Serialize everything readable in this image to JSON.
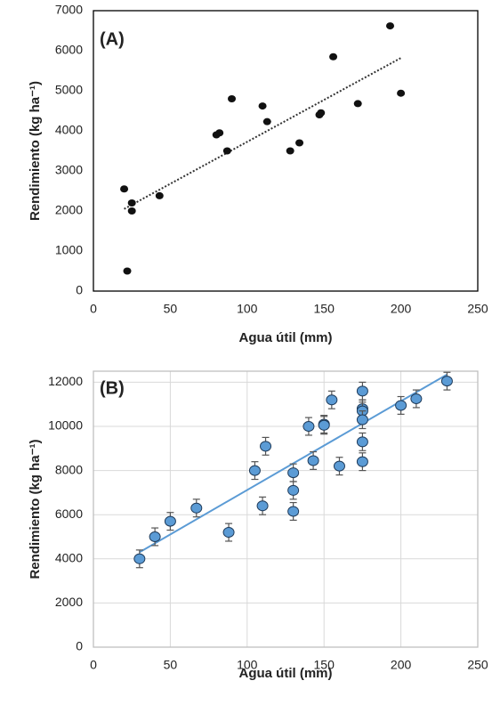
{
  "chart_data": [
    {
      "type": "scatter",
      "annotation": "(A)",
      "x_label": "Agua útil (mm)",
      "y_label": "Rendimiento (kg ha⁻¹)",
      "xlim": [
        0,
        250
      ],
      "ylim": [
        0,
        7000
      ],
      "xticks": [
        0,
        50,
        100,
        150,
        200,
        250
      ],
      "yticks": [
        0,
        1000,
        2000,
        3000,
        4000,
        5000,
        6000,
        7000
      ],
      "grid": false,
      "frame_color": "#000000",
      "color": "#111111",
      "x": [
        20,
        22,
        25,
        25,
        43,
        80,
        82,
        87,
        90,
        110,
        113,
        128,
        134,
        147,
        148,
        156,
        172,
        193,
        200
      ],
      "values": [
        2550,
        500,
        2200,
        2000,
        2380,
        3900,
        3950,
        3500,
        4800,
        4620,
        4230,
        3500,
        3700,
        4400,
        4450,
        5850,
        4680,
        6620,
        4940
      ],
      "trendline": {
        "x": [
          20,
          200
        ],
        "values": [
          2050,
          5820
        ],
        "color": "#333333",
        "style": "dotted"
      }
    },
    {
      "type": "scatter",
      "annotation": "(B)",
      "x_label": "Agua útil (mm)",
      "y_label": "Rendimiento (kg ha⁻¹)",
      "xlim": [
        0,
        250
      ],
      "ylim": [
        0,
        12500
      ],
      "xticks": [
        0,
        50,
        100,
        150,
        200,
        250
      ],
      "yticks": [
        0,
        2000,
        4000,
        6000,
        8000,
        10000,
        12000
      ],
      "grid": true,
      "frame_color": "#bfbfbf",
      "color": "#5b9bd5",
      "x": [
        30,
        40,
        50,
        67,
        88,
        105,
        110,
        112,
        130,
        130,
        130,
        140,
        143,
        150,
        150,
        155,
        160,
        175,
        175,
        175,
        175,
        175,
        175,
        200,
        210,
        230
      ],
      "values": [
        4000,
        5000,
        5700,
        6300,
        5200,
        8000,
        6400,
        9100,
        7900,
        7100,
        6150,
        10000,
        8450,
        10100,
        10050,
        11200,
        8200,
        11600,
        10800,
        10700,
        10300,
        9300,
        8400,
        10950,
        11250,
        12050
      ],
      "errors": [
        400,
        400,
        400,
        400,
        400,
        400,
        400,
        400,
        400,
        400,
        400,
        400,
        400,
        400,
        400,
        400,
        400,
        400,
        400,
        400,
        400,
        400,
        400,
        400,
        400,
        400
      ],
      "trendline": {
        "x": [
          30,
          230
        ],
        "values": [
          4300,
          12350
        ],
        "color": "#5b9bd5",
        "style": "solid"
      }
    }
  ]
}
